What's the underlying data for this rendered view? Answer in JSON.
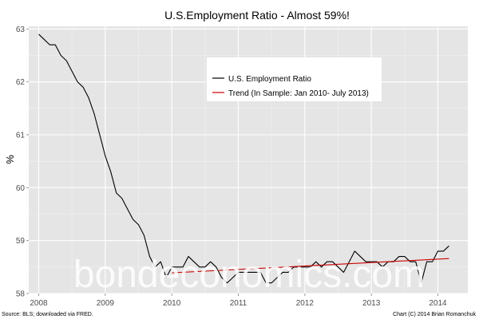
{
  "chart_data": {
    "type": "line",
    "title": "U.S.Employment Ratio - Almost 59%!",
    "xlabel": "",
    "ylabel": "%",
    "xlim": [
      2007.85,
      2014.45
    ],
    "ylim": [
      58.0,
      63.05
    ],
    "x_ticks": [
      2008,
      2009,
      2010,
      2011,
      2012,
      2013,
      2014
    ],
    "x_tick_labels": [
      "2008",
      "2009",
      "2010",
      "2011",
      "2012",
      "2013",
      "2014"
    ],
    "y_ticks": [
      58,
      59,
      60,
      61,
      62,
      63
    ],
    "y_tick_labels": [
      "58",
      "59",
      "60",
      "61",
      "62",
      "63"
    ],
    "grid": true,
    "legend_position": "top-center",
    "series": [
      {
        "name": "U.S. Employment Ratio",
        "color": "#000000",
        "x": [
          2008.0,
          2008.083,
          2008.167,
          2008.25,
          2008.333,
          2008.417,
          2008.5,
          2008.583,
          2008.667,
          2008.75,
          2008.833,
          2008.917,
          2009.0,
          2009.083,
          2009.167,
          2009.25,
          2009.333,
          2009.417,
          2009.5,
          2009.583,
          2009.667,
          2009.75,
          2009.833,
          2009.917,
          2010.0,
          2010.083,
          2010.167,
          2010.25,
          2010.333,
          2010.417,
          2010.5,
          2010.583,
          2010.667,
          2010.75,
          2010.833,
          2010.917,
          2011.0,
          2011.083,
          2011.167,
          2011.25,
          2011.333,
          2011.417,
          2011.5,
          2011.583,
          2011.667,
          2011.75,
          2011.833,
          2011.917,
          2012.0,
          2012.083,
          2012.167,
          2012.25,
          2012.333,
          2012.417,
          2012.5,
          2012.583,
          2012.667,
          2012.75,
          2012.833,
          2012.917,
          2013.0,
          2013.083,
          2013.167,
          2013.25,
          2013.333,
          2013.417,
          2013.5,
          2013.583,
          2013.667,
          2013.75,
          2013.833,
          2013.917,
          2014.0,
          2014.083,
          2014.167
        ],
        "values": [
          62.9,
          62.8,
          62.7,
          62.7,
          62.5,
          62.4,
          62.2,
          62.0,
          61.9,
          61.7,
          61.4,
          61.0,
          60.6,
          60.3,
          59.9,
          59.8,
          59.6,
          59.4,
          59.3,
          59.1,
          58.7,
          58.5,
          58.6,
          58.3,
          58.5,
          58.5,
          58.5,
          58.7,
          58.6,
          58.5,
          58.5,
          58.6,
          58.5,
          58.3,
          58.2,
          58.3,
          58.4,
          58.4,
          58.4,
          58.4,
          58.4,
          58.2,
          58.2,
          58.3,
          58.4,
          58.4,
          58.5,
          58.5,
          58.5,
          58.5,
          58.6,
          58.5,
          58.6,
          58.6,
          58.5,
          58.4,
          58.6,
          58.8,
          58.7,
          58.6,
          58.6,
          58.6,
          58.5,
          58.6,
          58.6,
          58.7,
          58.7,
          58.6,
          58.6,
          58.2,
          58.6,
          58.6,
          58.8,
          58.8,
          58.9
        ]
      },
      {
        "name": "Trend (In Sample: Jan 2010- July 2013)",
        "color": "#cc0000",
        "x": [
          2010.0,
          2014.167
        ],
        "values": [
          58.39,
          58.66
        ]
      }
    ],
    "annotations": {
      "source": "Source: BLS; downloaded via FRED.",
      "credit": "Chart (C) 2014 Brian Romanchuk",
      "watermark": "bondeconomics.com"
    }
  },
  "colors": {
    "panel_background": "#e5e5e5",
    "grid_major": "#ffffff",
    "grid_minor": "#f2f2f2",
    "legend_background": "#ffffff"
  }
}
